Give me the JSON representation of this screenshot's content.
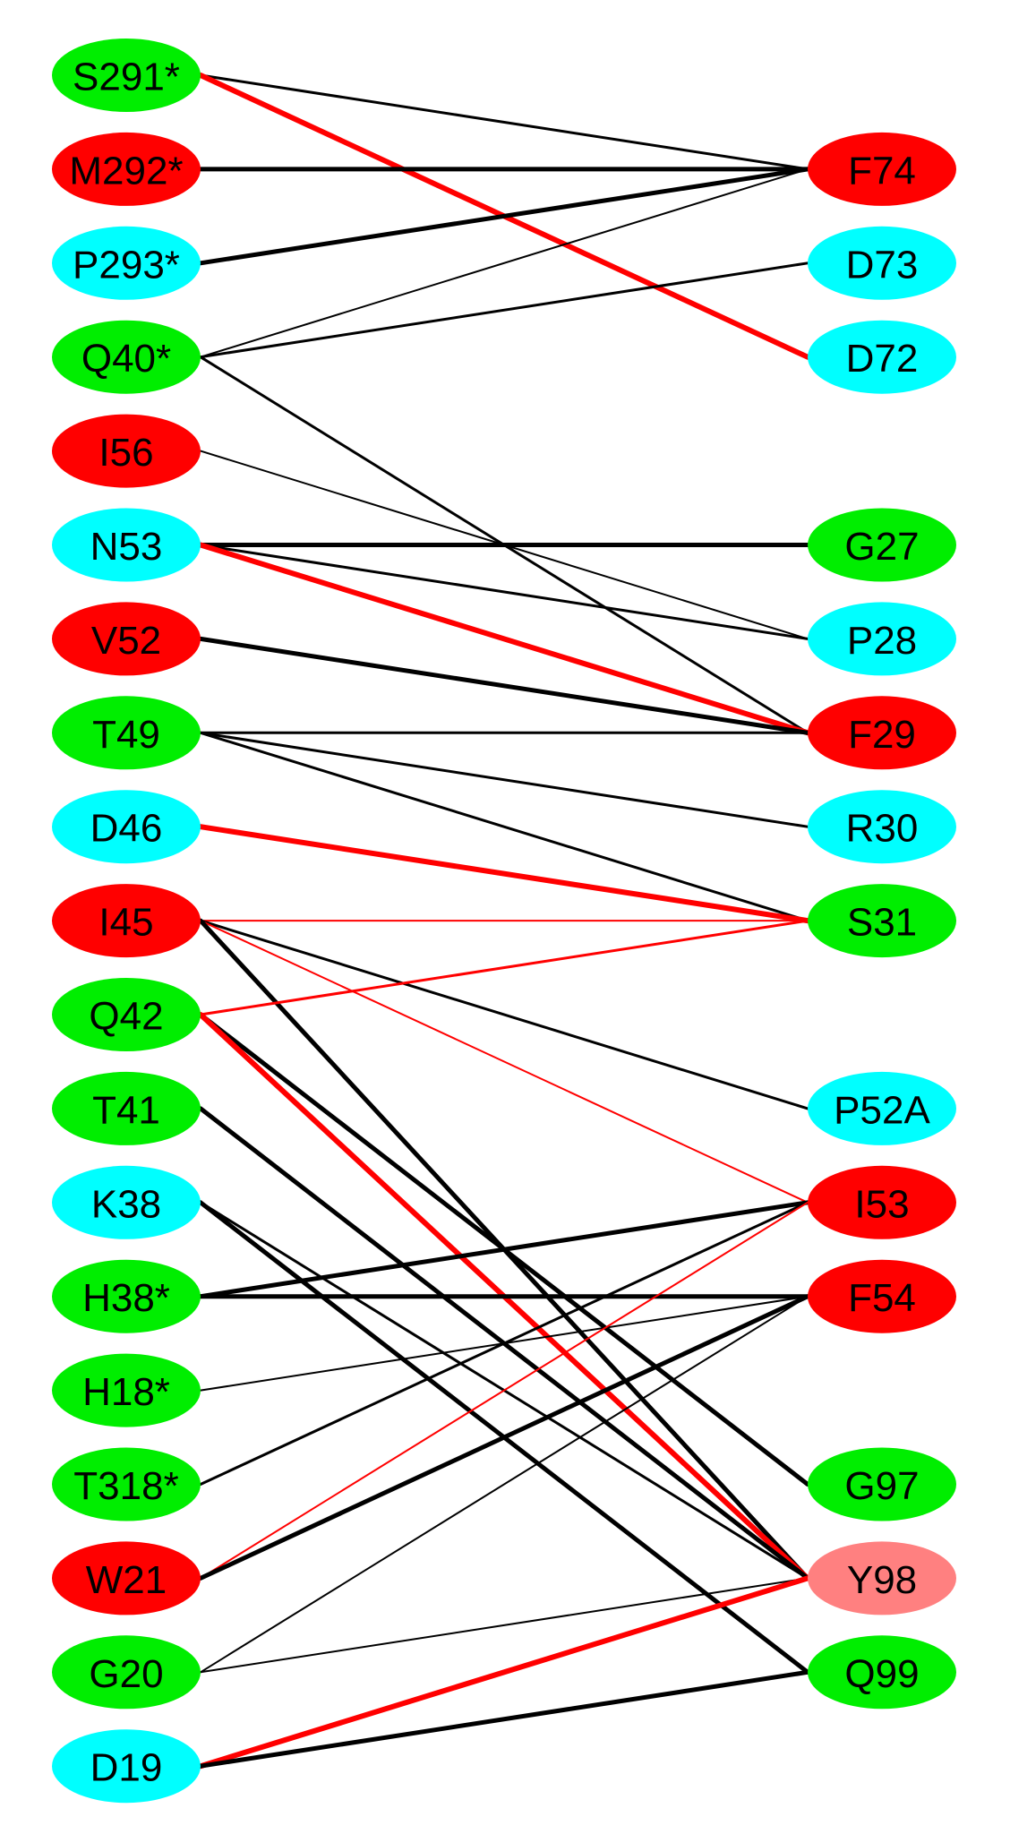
{
  "palette": {
    "green": "#00ee00",
    "red": "#ff0000",
    "cyan": "#00ffff",
    "salmon": "#ff8080",
    "black_line": "#000000",
    "red_line": "#ff0000"
  },
  "left_nodes": [
    {
      "id": "S291*",
      "color": "green"
    },
    {
      "id": "M292*",
      "color": "red"
    },
    {
      "id": "P293*",
      "color": "cyan"
    },
    {
      "id": "Q40*",
      "color": "green"
    },
    {
      "id": "I56",
      "color": "red"
    },
    {
      "id": "N53",
      "color": "cyan"
    },
    {
      "id": "V52",
      "color": "red"
    },
    {
      "id": "T49",
      "color": "green"
    },
    {
      "id": "D46",
      "color": "cyan"
    },
    {
      "id": "I45",
      "color": "red"
    },
    {
      "id": "Q42",
      "color": "green"
    },
    {
      "id": "T41",
      "color": "green"
    },
    {
      "id": "K38",
      "color": "cyan"
    },
    {
      "id": "H38*",
      "color": "green"
    },
    {
      "id": "H18*",
      "color": "green"
    },
    {
      "id": "T318*",
      "color": "green"
    },
    {
      "id": "W21",
      "color": "red"
    },
    {
      "id": "G20",
      "color": "green"
    },
    {
      "id": "D19",
      "color": "cyan"
    }
  ],
  "right_nodes": [
    {
      "id": "F74",
      "color": "red",
      "row": 1
    },
    {
      "id": "D73",
      "color": "cyan",
      "row": 2
    },
    {
      "id": "D72",
      "color": "cyan",
      "row": 3
    },
    {
      "id": "G27",
      "color": "green",
      "row": 5
    },
    {
      "id": "P28",
      "color": "cyan",
      "row": 6
    },
    {
      "id": "F29",
      "color": "red",
      "row": 7
    },
    {
      "id": "R30",
      "color": "cyan",
      "row": 8
    },
    {
      "id": "S31",
      "color": "green",
      "row": 9
    },
    {
      "id": "P52A",
      "color": "cyan",
      "row": 11
    },
    {
      "id": "I53",
      "color": "red",
      "row": 12
    },
    {
      "id": "F54",
      "color": "red",
      "row": 13
    },
    {
      "id": "G97",
      "color": "green",
      "row": 15
    },
    {
      "id": "Y98",
      "color": "salmon",
      "row": 16
    },
    {
      "id": "Q99",
      "color": "green",
      "row": 17
    }
  ],
  "edges": [
    {
      "from": "S291*",
      "to": "F74",
      "color": "black",
      "weight": "medium"
    },
    {
      "from": "S291*",
      "to": "D72",
      "color": "red",
      "weight": "heavy"
    },
    {
      "from": "M292*",
      "to": "F74",
      "color": "black",
      "weight": "heavy"
    },
    {
      "from": "P293*",
      "to": "F74",
      "color": "black",
      "weight": "heavy"
    },
    {
      "from": "Q40*",
      "to": "F74",
      "color": "black",
      "weight": "thin"
    },
    {
      "from": "Q40*",
      "to": "D73",
      "color": "black",
      "weight": "medium"
    },
    {
      "from": "Q40*",
      "to": "F29",
      "color": "black",
      "weight": "medium"
    },
    {
      "from": "I56",
      "to": "P28",
      "color": "black",
      "weight": "thin"
    },
    {
      "from": "N53",
      "to": "G27",
      "color": "black",
      "weight": "heavy"
    },
    {
      "from": "N53",
      "to": "P28",
      "color": "black",
      "weight": "medium"
    },
    {
      "from": "N53",
      "to": "F29",
      "color": "red",
      "weight": "heavy"
    },
    {
      "from": "V52",
      "to": "F29",
      "color": "black",
      "weight": "heavy"
    },
    {
      "from": "T49",
      "to": "F29",
      "color": "black",
      "weight": "medium"
    },
    {
      "from": "T49",
      "to": "R30",
      "color": "black",
      "weight": "medium"
    },
    {
      "from": "T49",
      "to": "S31",
      "color": "black",
      "weight": "medium"
    },
    {
      "from": "D46",
      "to": "S31",
      "color": "red",
      "weight": "heavy"
    },
    {
      "from": "I45",
      "to": "S31",
      "color": "red",
      "weight": "thin"
    },
    {
      "from": "I45",
      "to": "P52A",
      "color": "black",
      "weight": "medium"
    },
    {
      "from": "I45",
      "to": "I53",
      "color": "red",
      "weight": "thin"
    },
    {
      "from": "I45",
      "to": "Y98",
      "color": "black",
      "weight": "heavy"
    },
    {
      "from": "Q42",
      "to": "S31",
      "color": "red",
      "weight": "medium"
    },
    {
      "from": "Q42",
      "to": "G97",
      "color": "black",
      "weight": "heavy"
    },
    {
      "from": "Q42",
      "to": "Y98",
      "color": "red",
      "weight": "heavy"
    },
    {
      "from": "T41",
      "to": "Y98",
      "color": "black",
      "weight": "heavy"
    },
    {
      "from": "K38",
      "to": "Y98",
      "color": "black",
      "weight": "medium"
    },
    {
      "from": "K38",
      "to": "Q99",
      "color": "black",
      "weight": "heavy"
    },
    {
      "from": "H38*",
      "to": "I53",
      "color": "black",
      "weight": "heavy"
    },
    {
      "from": "H38*",
      "to": "F54",
      "color": "black",
      "weight": "heavy"
    },
    {
      "from": "H18*",
      "to": "F54",
      "color": "black",
      "weight": "thin"
    },
    {
      "from": "T318*",
      "to": "I53",
      "color": "black",
      "weight": "medium"
    },
    {
      "from": "W21",
      "to": "I53",
      "color": "red",
      "weight": "thin"
    },
    {
      "from": "W21",
      "to": "F54",
      "color": "black",
      "weight": "heavy"
    },
    {
      "from": "G20",
      "to": "F54",
      "color": "black",
      "weight": "thin"
    },
    {
      "from": "G20",
      "to": "Y98",
      "color": "black",
      "weight": "thin"
    },
    {
      "from": "D19",
      "to": "Y98",
      "color": "red",
      "weight": "heavy"
    },
    {
      "from": "D19",
      "to": "Q99",
      "color": "black",
      "weight": "heavy"
    }
  ]
}
